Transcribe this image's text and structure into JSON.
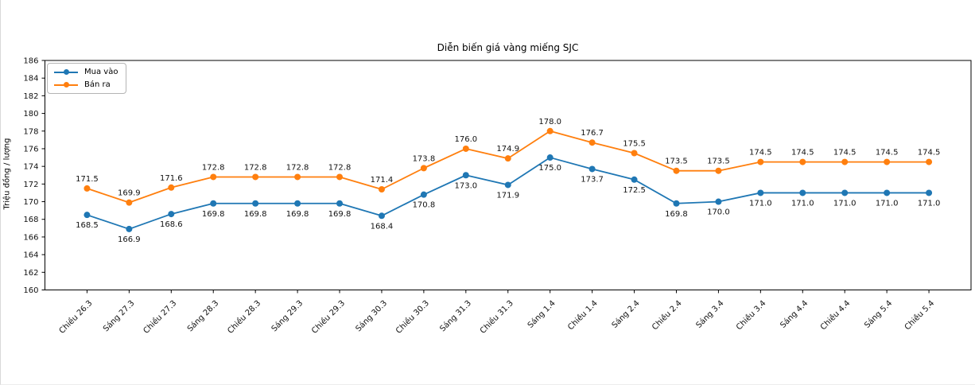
{
  "chart_data": {
    "type": "line",
    "title": "Diễn biến giá vàng miếng SJC",
    "xlabel": "",
    "ylabel": "Triệu đồng / lượng",
    "ylim": [
      160,
      186
    ],
    "ytick_step": 2,
    "grid": false,
    "legend_position": "upper-left",
    "marker": "circle",
    "categories": [
      "Chiều 26.3",
      "Sáng 27.3",
      "Chiều 27.3",
      "Sáng 28.3",
      "Chiều 28.3",
      "Sáng 29.3",
      "Chiều 29.3",
      "Sáng 30.3",
      "Chiều 30.3",
      "Sáng 31.3",
      "Chiều 31.3",
      "Sáng 1.4",
      "Chiều 1.4",
      "Sáng 2.4",
      "Chiều 2.4",
      "Sáng 3.4",
      "Chiều 3.4",
      "Sáng 4.4",
      "Chiều 4.4",
      "Sáng 5.4",
      "Chiều 5.4"
    ],
    "series": [
      {
        "name": "Mua vào",
        "color": "#1f77b4",
        "label_position": "below",
        "values": [
          168.5,
          166.9,
          168.6,
          169.8,
          169.8,
          169.8,
          169.8,
          168.4,
          170.8,
          173.0,
          171.9,
          175.0,
          173.7,
          172.5,
          169.8,
          170.0,
          171.0,
          171.0,
          171.0,
          171.0,
          171.0
        ]
      },
      {
        "name": "Bán ra",
        "color": "#ff7f0e",
        "label_position": "above",
        "values": [
          171.5,
          169.9,
          171.6,
          172.8,
          172.8,
          172.8,
          172.8,
          171.4,
          173.8,
          176.0,
          174.9,
          178.0,
          176.7,
          175.5,
          173.5,
          173.5,
          174.5,
          174.5,
          174.5,
          174.5,
          174.5
        ]
      }
    ]
  }
}
